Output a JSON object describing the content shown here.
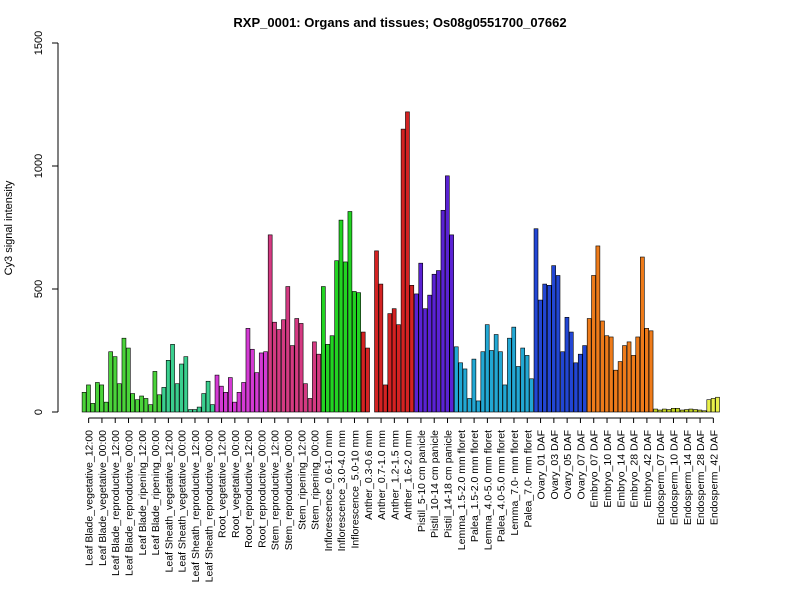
{
  "chart_data": {
    "type": "bar",
    "title": "RXP_0001: Organs and tissues; Os08g0551700_07662",
    "xlabel": "",
    "ylabel": "Cy3 signal intensity",
    "ylim": [
      0,
      1500
    ],
    "yticks": [
      0,
      500,
      1000,
      1500
    ],
    "grid": false,
    "legend": "none",
    "groups": [
      {
        "label": "Leaf Blade_vegetative_12:00",
        "color": "#4ad33a",
        "values": [
          80,
          110,
          35
        ]
      },
      {
        "label": "Leaf Blade_vegetative_00:00",
        "color": "#4ad33a",
        "values": [
          120,
          110,
          40
        ]
      },
      {
        "label": "Leaf Blade_reproductive_12:00",
        "color": "#4ad33a",
        "values": [
          245,
          225,
          115
        ]
      },
      {
        "label": "Leaf Blade_reproductive_00:00",
        "color": "#4ad33a",
        "values": [
          300,
          260,
          75
        ]
      },
      {
        "label": "Leaf Blade_ripening_12:00",
        "color": "#4ad33a",
        "values": [
          50,
          65,
          55
        ]
      },
      {
        "label": "Leaf Blade_ripening_00:00",
        "color": "#4ad33a",
        "values": [
          30,
          165,
          70
        ]
      },
      {
        "label": "Leaf Sheath_vegetative_12:00",
        "color": "#3acf8e",
        "values": [
          100,
          210,
          275
        ]
      },
      {
        "label": "Leaf Sheath_vegetative_00:00",
        "color": "#3acf8e",
        "values": [
          115,
          195,
          225
        ]
      },
      {
        "label": "Leaf Sheath_reproductive_12:00",
        "color": "#3acf8e",
        "values": [
          10,
          10,
          20
        ]
      },
      {
        "label": "Leaf Sheath_reproductive_00:00",
        "color": "#3acf8e",
        "values": [
          75,
          125,
          30
        ]
      },
      {
        "label": "Root_vegetative_12:00",
        "color": "#d43ad4",
        "values": [
          150,
          105,
          80
        ]
      },
      {
        "label": "Root_vegetative_00:00",
        "color": "#d43ad4",
        "values": [
          140,
          40,
          80
        ]
      },
      {
        "label": "Root_reproductive_12:00",
        "color": "#d43ad4",
        "values": [
          120,
          340,
          255
        ]
      },
      {
        "label": "Root_reproductive_00:00",
        "color": "#d43ad4",
        "values": [
          160,
          240,
          245
        ]
      },
      {
        "label": "Stem_reproductive_12:00",
        "color": "#d43a82",
        "values": [
          720,
          365,
          335
        ]
      },
      {
        "label": "Stem_reproductive_00:00",
        "color": "#d43a82",
        "values": [
          375,
          510,
          270
        ]
      },
      {
        "label": "Stem_ripening_12:00",
        "color": "#d43a82",
        "values": [
          380,
          360,
          115
        ]
      },
      {
        "label": "Stem_ripening_00:00",
        "color": "#d43a82",
        "values": [
          55,
          285,
          235
        ]
      },
      {
        "label": "Inflorescence_0.6-1.0 mm",
        "color": "#22d422",
        "values": [
          510,
          275,
          310
        ]
      },
      {
        "label": "Inflorescence_3.0-4.0 mm",
        "color": "#22d422",
        "values": [
          615,
          780,
          610
        ]
      },
      {
        "label": "Inflorescence_5.0-10 mm",
        "color": "#22d422",
        "values": [
          815,
          490,
          485
        ]
      },
      {
        "label": "Anther_0.3-0.6 mm",
        "color": "#d42222",
        "values": [
          325,
          260
        ]
      },
      {
        "label": "Anther_0.7-1.0 mm",
        "color": "#d42222",
        "values": [
          655,
          520,
          110
        ]
      },
      {
        "label": "Anther_1.2-1.5 mm",
        "color": "#d42222",
        "values": [
          400,
          420,
          355
        ]
      },
      {
        "label": "Anther_1.6-2.0 mm",
        "color": "#d42222",
        "values": [
          1150,
          1220,
          515
        ]
      },
      {
        "label": "Pistil_5-10 cm panicle",
        "color": "#5a22d4",
        "values": [
          480,
          605,
          420
        ]
      },
      {
        "label": "Pistil_10-14 cm panicle",
        "color": "#5a22d4",
        "values": [
          475,
          560,
          575
        ]
      },
      {
        "label": "Pistil_14-18 cm panicle",
        "color": "#5a22d4",
        "values": [
          820,
          960,
          720
        ]
      },
      {
        "label": "Lemma_1.5-2.0 mm floret",
        "color": "#22a8d4",
        "values": [
          265,
          200,
          175
        ]
      },
      {
        "label": "Palea_1.5-2.0 mm floret",
        "color": "#22a8d4",
        "values": [
          55,
          215,
          45
        ]
      },
      {
        "label": "Lemma_4.0-5.0 mm floret",
        "color": "#22a8d4",
        "values": [
          245,
          355,
          250
        ]
      },
      {
        "label": "Palea_4.0-5.0 mm floret",
        "color": "#22a8d4",
        "values": [
          315,
          245,
          110
        ]
      },
      {
        "label": "Lemma_7.0- mm floret",
        "color": "#22a8d4",
        "values": [
          300,
          345,
          185
        ]
      },
      {
        "label": "Palea_7.0- mm floret",
        "color": "#22a8d4",
        "values": [
          260,
          230,
          135
        ]
      },
      {
        "label": "Ovary_01 DAF",
        "color": "#2246d4",
        "values": [
          745,
          455,
          520
        ]
      },
      {
        "label": "Ovary_03 DAF",
        "color": "#2246d4",
        "values": [
          515,
          595,
          555
        ]
      },
      {
        "label": "Ovary_05 DAF",
        "color": "#2246d4",
        "values": [
          245,
          385,
          325
        ]
      },
      {
        "label": "Ovary_07 DAF",
        "color": "#2246d4",
        "values": [
          200,
          235,
          270
        ]
      },
      {
        "label": "Embryo_07 DAF",
        "color": "#ee7b1a",
        "values": [
          380,
          555,
          675
        ]
      },
      {
        "label": "Embryo_10 DAF",
        "color": "#ee7b1a",
        "values": [
          370,
          310,
          305
        ]
      },
      {
        "label": "Embryo_14 DAF",
        "color": "#ee7b1a",
        "values": [
          170,
          205,
          270
        ]
      },
      {
        "label": "Embryo_28 DAF",
        "color": "#ee7b1a",
        "values": [
          285,
          230,
          305
        ]
      },
      {
        "label": "Embryo_42 DAF",
        "color": "#ee7b1a",
        "values": [
          630,
          340,
          330
        ]
      },
      {
        "label": "Endosperm_07 DAF",
        "color": "#c2d422",
        "values": [
          12,
          8,
          12
        ]
      },
      {
        "label": "Endosperm_10 DAF",
        "color": "#c2d422",
        "values": [
          10,
          15,
          15
        ]
      },
      {
        "label": "Endosperm_14 DAF",
        "color": "#c2d422",
        "values": [
          8,
          10,
          12
        ]
      },
      {
        "label": "Endosperm_28 DAF",
        "color": "#c2d422",
        "values": [
          10,
          8,
          5
        ]
      },
      {
        "label": "Endosperm_42 DAF",
        "color": "#e8f04a",
        "values": [
          50,
          55,
          60
        ]
      }
    ]
  }
}
